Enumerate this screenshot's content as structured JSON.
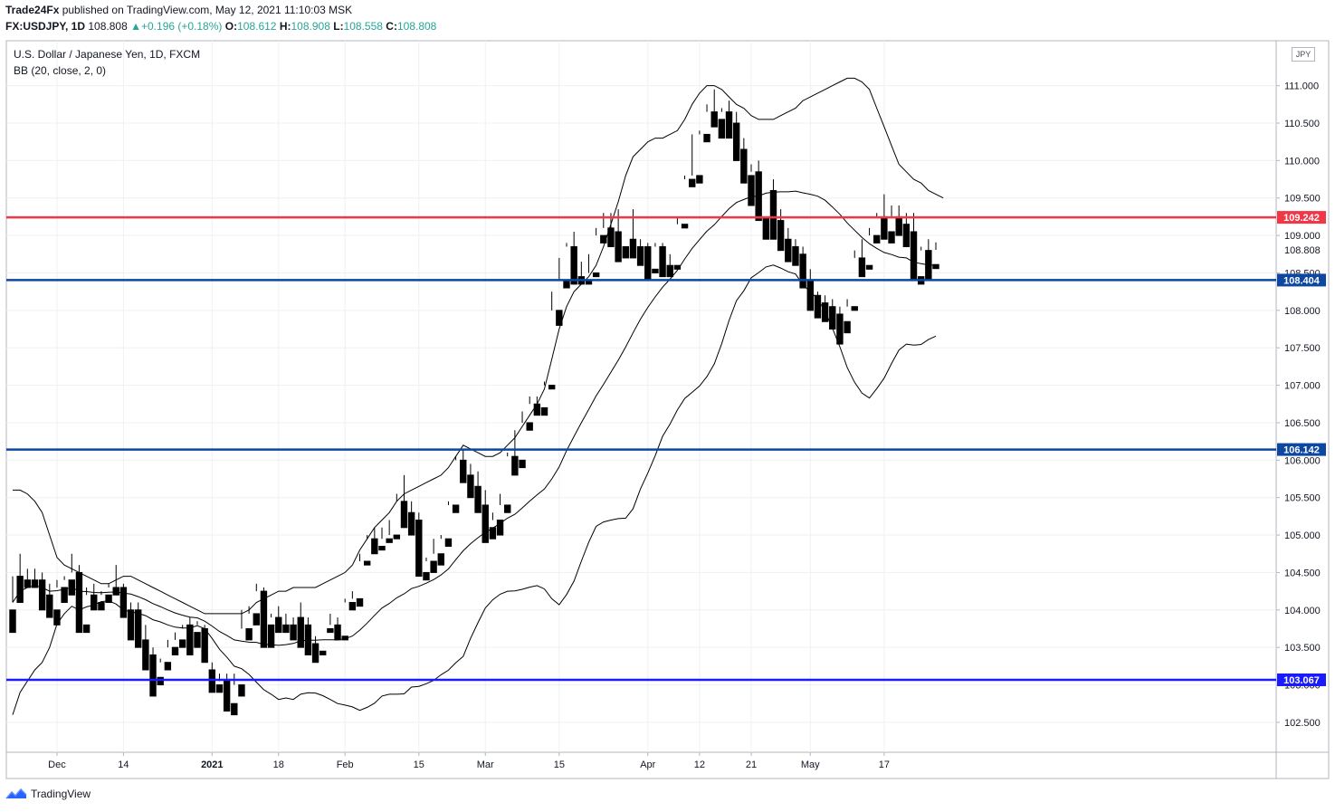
{
  "header": {
    "author": "Trade24Fx",
    "publish_text": " published on TradingView.com, May 12, 2021 11:10:03 MSK",
    "symbol": "FX:USDJPY, 1D",
    "last": "108.808",
    "change": "+0.196 (+0.18%)",
    "o_label": "O:",
    "o_value": "108.612",
    "h_label": "H:",
    "h_value": "108.908",
    "l_label": "L:",
    "l_value": "108.558",
    "c_label": "C:",
    "c_value": "108.808"
  },
  "legend": {
    "title": "U.S. Dollar / Japanese Yen, 1D, FXCM",
    "indicator": "BB (20, close, 2, 0)"
  },
  "currency_tag": "JPY",
  "footer": {
    "brand": "TradingView"
  },
  "colors": {
    "up_candle": "#ffffff",
    "down_candle": "#000000",
    "red_level": "#f23645",
    "blue_level": "#0d47a1",
    "bb_line": "#000000"
  },
  "chart_data": {
    "type": "candlestick",
    "ylim": [
      102.1,
      111.6
    ],
    "y_ticks": [
      "111.000",
      "110.500",
      "110.000",
      "109.500",
      "109.000",
      "108.500",
      "108.000",
      "107.500",
      "107.000",
      "106.500",
      "106.000",
      "105.500",
      "105.000",
      "104.500",
      "104.000",
      "103.500",
      "103.000",
      "102.500"
    ],
    "x_ticks": [
      {
        "label": "Dec",
        "bar": 6
      },
      {
        "label": "14",
        "bar": 15
      },
      {
        "label": "2021",
        "bar": 27
      },
      {
        "label": "18",
        "bar": 36
      },
      {
        "label": "Feb",
        "bar": 45
      },
      {
        "label": "15",
        "bar": 55
      },
      {
        "label": "Mar",
        "bar": 64
      },
      {
        "label": "15",
        "bar": 74
      },
      {
        "label": "Apr",
        "bar": 86
      },
      {
        "label": "12",
        "bar": 93
      },
      {
        "label": "21",
        "bar": 100
      },
      {
        "label": "May",
        "bar": 108
      },
      {
        "label": "17",
        "bar": 118
      }
    ],
    "levels": [
      {
        "value": 109.242,
        "label": "109.242",
        "color": "red"
      },
      {
        "value": 108.404,
        "label": "108.404",
        "color": "blue"
      },
      {
        "value": 106.142,
        "label": "106.142",
        "color": "blue"
      },
      {
        "value": 103.067,
        "label": "103.067",
        "color": "blue2"
      }
    ],
    "last_price": {
      "value": 108.808,
      "label": "108.808"
    },
    "candles": [
      [
        104.0,
        104.45,
        104.1,
        103.7
      ],
      [
        104.45,
        104.75,
        104.4,
        104.1
      ],
      [
        104.4,
        104.55,
        104.4,
        104.3
      ],
      [
        104.4,
        104.55,
        104.4,
        104.3
      ],
      [
        104.4,
        104.5,
        104.2,
        104.0
      ],
      [
        104.2,
        104.35,
        104.0,
        103.9
      ],
      [
        104.0,
        104.4,
        104.3,
        103.8
      ],
      [
        104.3,
        104.45,
        104.4,
        104.1
      ],
      [
        104.4,
        104.75,
        104.5,
        104.2
      ],
      [
        104.5,
        104.6,
        103.8,
        103.7
      ],
      [
        103.8,
        104.3,
        104.2,
        103.7
      ],
      [
        104.2,
        104.35,
        104.1,
        104.0
      ],
      [
        104.1,
        104.25,
        104.2,
        104.0
      ],
      [
        104.2,
        104.35,
        104.3,
        104.1
      ],
      [
        104.3,
        104.6,
        104.3,
        104.2
      ],
      [
        104.3,
        104.35,
        104.0,
        103.9
      ],
      [
        104.0,
        104.1,
        104.0,
        103.6
      ],
      [
        104.0,
        104.1,
        103.6,
        103.5
      ],
      [
        103.6,
        103.8,
        103.4,
        103.2
      ],
      [
        103.4,
        103.5,
        103.1,
        102.85
      ],
      [
        103.1,
        103.35,
        103.3,
        103.0
      ],
      [
        103.3,
        103.6,
        103.5,
        103.2
      ],
      [
        103.5,
        103.7,
        103.6,
        103.4
      ],
      [
        103.6,
        103.75,
        103.8,
        103.5
      ],
      [
        103.8,
        103.9,
        103.7,
        103.4
      ],
      [
        103.7,
        103.85,
        103.8,
        103.5
      ],
      [
        103.75,
        103.8,
        103.4,
        103.3
      ],
      [
        103.2,
        103.3,
        103.1,
        102.9
      ],
      [
        103.0,
        103.15,
        103.05,
        102.9
      ],
      [
        103.05,
        103.15,
        102.75,
        102.65
      ],
      [
        102.75,
        103.15,
        103.0,
        102.6
      ],
      [
        103.0,
        104.0,
        103.75,
        102.85
      ],
      [
        103.75,
        104.05,
        103.95,
        103.6
      ],
      [
        103.95,
        104.35,
        104.25,
        103.8
      ],
      [
        104.25,
        104.3,
        103.8,
        103.5
      ],
      [
        103.8,
        103.95,
        103.9,
        103.5
      ],
      [
        103.9,
        104.05,
        103.8,
        103.7
      ],
      [
        103.8,
        103.95,
        103.8,
        103.7
      ],
      [
        103.8,
        103.9,
        103.7,
        103.6
      ],
      [
        103.9,
        104.1,
        103.8,
        103.5
      ],
      [
        103.8,
        103.9,
        103.5,
        103.4
      ],
      [
        103.55,
        103.65,
        103.45,
        103.3
      ],
      [
        103.45,
        103.75,
        103.75,
        103.4
      ],
      [
        103.75,
        103.95,
        103.8,
        103.7
      ],
      [
        103.8,
        103.9,
        103.65,
        103.6
      ],
      [
        103.65,
        104.15,
        104.1,
        103.6
      ],
      [
        104.1,
        104.25,
        104.15,
        104.0
      ],
      [
        104.15,
        104.75,
        104.65,
        104.05
      ],
      [
        104.65,
        105.0,
        104.95,
        104.6
      ],
      [
        104.95,
        105.1,
        104.8,
        104.75
      ],
      [
        104.85,
        105.1,
        104.95,
        104.8
      ],
      [
        104.95,
        105.2,
        105.0,
        104.9
      ],
      [
        105.0,
        105.55,
        105.45,
        104.95
      ],
      [
        105.45,
        105.8,
        105.3,
        105.1
      ],
      [
        105.3,
        105.45,
        105.2,
        105.0
      ],
      [
        105.2,
        105.3,
        104.5,
        104.45
      ],
      [
        104.5,
        104.7,
        104.65,
        104.4
      ],
      [
        104.65,
        104.95,
        104.75,
        104.5
      ],
      [
        104.75,
        105.0,
        104.95,
        104.6
      ],
      [
        104.95,
        105.45,
        105.4,
        104.85
      ],
      [
        105.4,
        106.05,
        106.0,
        105.3
      ],
      [
        106.0,
        106.15,
        105.8,
        105.7
      ],
      [
        105.8,
        105.95,
        105.65,
        105.5
      ],
      [
        105.65,
        105.85,
        105.4,
        105.3
      ],
      [
        105.4,
        105.6,
        105.1,
        104.9
      ],
      [
        105.1,
        105.3,
        105.2,
        104.95
      ],
      [
        105.2,
        105.55,
        105.4,
        105.0
      ],
      [
        105.4,
        106.1,
        106.05,
        105.3
      ],
      [
        106.05,
        106.4,
        106.0,
        105.8
      ],
      [
        106.0,
        106.65,
        106.5,
        105.9
      ],
      [
        106.5,
        106.85,
        106.75,
        106.4
      ],
      [
        106.75,
        106.85,
        106.7,
        106.6
      ],
      [
        106.7,
        107.05,
        107.0,
        106.6
      ],
      [
        107.0,
        108.25,
        108.0,
        106.95
      ],
      [
        108.0,
        108.7,
        108.4,
        107.8
      ],
      [
        108.4,
        108.9,
        108.85,
        108.3
      ],
      [
        108.85,
        109.05,
        108.45,
        108.35
      ],
      [
        108.45,
        108.65,
        108.4,
        108.35
      ],
      [
        108.4,
        108.75,
        108.5,
        108.35
      ],
      [
        108.5,
        109.1,
        109.0,
        108.45
      ],
      [
        109.0,
        109.3,
        109.1,
        108.9
      ],
      [
        109.1,
        109.3,
        109.05,
        108.85
      ],
      [
        109.05,
        109.35,
        108.85,
        108.65
      ],
      [
        108.85,
        108.95,
        108.95,
        108.7
      ],
      [
        108.95,
        109.35,
        108.85,
        108.7
      ],
      [
        108.85,
        108.95,
        108.85,
        108.6
      ],
      [
        108.85,
        108.9,
        108.55,
        108.4
      ],
      [
        108.55,
        108.9,
        108.85,
        108.5
      ],
      [
        108.85,
        108.9,
        108.6,
        108.45
      ],
      [
        108.6,
        108.75,
        108.6,
        108.45
      ],
      [
        108.6,
        109.25,
        109.15,
        108.55
      ],
      [
        109.15,
        109.8,
        109.75,
        109.1
      ],
      [
        109.75,
        110.35,
        109.8,
        109.65
      ],
      [
        109.8,
        110.4,
        110.35,
        109.7
      ],
      [
        110.35,
        110.75,
        110.65,
        110.25
      ],
      [
        110.65,
        110.95,
        110.55,
        110.45
      ],
      [
        110.55,
        110.7,
        110.65,
        110.3
      ],
      [
        110.65,
        110.8,
        110.5,
        110.3
      ],
      [
        110.5,
        110.65,
        110.15,
        110.0
      ],
      [
        110.15,
        110.3,
        109.8,
        109.7
      ],
      [
        109.8,
        109.95,
        109.85,
        109.4
      ],
      [
        109.85,
        110.0,
        109.25,
        109.2
      ],
      [
        109.25,
        109.6,
        109.6,
        108.95
      ],
      [
        109.6,
        109.75,
        109.2,
        108.95
      ],
      [
        109.2,
        109.35,
        108.95,
        108.8
      ],
      [
        108.95,
        109.1,
        108.85,
        108.65
      ],
      [
        108.85,
        108.95,
        108.75,
        108.6
      ],
      [
        108.75,
        108.85,
        108.4,
        108.3
      ],
      [
        108.4,
        108.55,
        108.2,
        108.0
      ],
      [
        108.2,
        108.25,
        108.1,
        107.9
      ],
      [
        108.1,
        108.2,
        108.05,
        107.85
      ],
      [
        108.05,
        108.15,
        107.95,
        107.75
      ],
      [
        107.95,
        108.05,
        107.85,
        107.55
      ],
      [
        107.85,
        108.15,
        108.05,
        107.7
      ],
      [
        108.05,
        108.8,
        108.7,
        108.0
      ],
      [
        108.7,
        108.95,
        108.6,
        108.45
      ],
      [
        108.6,
        109.1,
        109.0,
        108.55
      ],
      [
        109.0,
        109.3,
        109.25,
        108.9
      ],
      [
        109.25,
        109.55,
        109.05,
        108.95
      ],
      [
        109.05,
        109.4,
        109.25,
        108.9
      ],
      [
        109.25,
        109.4,
        109.15,
        109.0
      ],
      [
        109.15,
        109.3,
        109.05,
        108.85
      ],
      [
        109.05,
        109.3,
        108.45,
        108.4
      ],
      [
        108.45,
        108.85,
        108.8,
        108.35
      ],
      [
        108.8,
        108.95,
        108.6,
        108.4
      ],
      [
        108.612,
        108.908,
        108.808,
        108.558
      ]
    ],
    "bb_upper": [
      105.6,
      105.6,
      105.55,
      105.45,
      105.3,
      105.0,
      104.7,
      104.6,
      104.55,
      104.5,
      104.45,
      104.4,
      104.35,
      104.35,
      104.4,
      104.45,
      104.45,
      104.4,
      104.35,
      104.3,
      104.25,
      104.2,
      104.15,
      104.1,
      104.05,
      104.0,
      103.95,
      103.95,
      103.95,
      103.95,
      103.95,
      103.95,
      104.0,
      104.1,
      104.15,
      104.2,
      104.25,
      104.25,
      104.3,
      104.3,
      104.3,
      104.3,
      104.35,
      104.4,
      104.45,
      104.5,
      104.6,
      104.8,
      104.95,
      105.1,
      105.2,
      105.3,
      105.45,
      105.55,
      105.6,
      105.65,
      105.7,
      105.75,
      105.8,
      105.9,
      106.05,
      106.2,
      106.15,
      106.1,
      106.05,
      106.05,
      106.1,
      106.2,
      106.3,
      106.45,
      106.6,
      106.75,
      106.95,
      107.35,
      107.75,
      108.05,
      108.25,
      108.35,
      108.45,
      108.6,
      108.85,
      109.15,
      109.45,
      109.8,
      110.05,
      110.15,
      110.25,
      110.3,
      110.3,
      110.35,
      110.4,
      110.55,
      110.75,
      110.9,
      111.0,
      111.0,
      110.95,
      110.85,
      110.75,
      110.7,
      110.6,
      110.55,
      110.55,
      110.55,
      110.6,
      110.65,
      110.7,
      110.8,
      110.85,
      110.9,
      110.95,
      111.0,
      111.05,
      111.1,
      111.1,
      111.05,
      110.95,
      110.7,
      110.45,
      110.2,
      109.95,
      109.85,
      109.75,
      109.7,
      109.6,
      109.55,
      109.5
    ]
  }
}
